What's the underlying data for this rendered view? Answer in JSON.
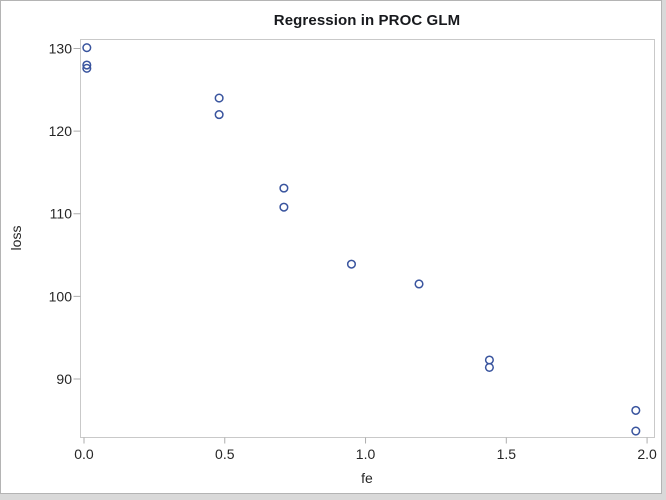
{
  "colors": {
    "marker_stroke": "#39549E",
    "plot_frame": "#c9c9c9",
    "tick_mark": "#adadad",
    "tick_text": "#262626",
    "graph_border": "#b4b4b4",
    "graph_background": "#ffffff",
    "page_background": "#d9d9d9"
  },
  "chart_data": {
    "type": "scatter",
    "title": "Regression in PROC GLM",
    "xlabel": "fe",
    "ylabel": "loss",
    "grid": false,
    "legend": "none",
    "marker": "open-circle",
    "xlim": [
      -0.0142,
      2.0246
    ],
    "ylim": [
      82.98,
      131.15
    ],
    "x_tick_values": [
      0.0,
      0.5,
      1.0,
      1.5,
      2.0
    ],
    "x_tick_labels": [
      "0.0",
      "0.5",
      "1.0",
      "1.5",
      "2.0"
    ],
    "y_tick_values": [
      90,
      100,
      110,
      120,
      130
    ],
    "y_tick_labels": [
      "90",
      "100",
      "110",
      "120",
      "130"
    ],
    "points": [
      {
        "x": 0.01,
        "y": 130.1
      },
      {
        "x": 0.01,
        "y": 128.0
      },
      {
        "x": 0.01,
        "y": 127.6
      },
      {
        "x": 0.48,
        "y": 124.0
      },
      {
        "x": 0.48,
        "y": 122.0
      },
      {
        "x": 0.71,
        "y": 113.1
      },
      {
        "x": 0.71,
        "y": 110.8
      },
      {
        "x": 0.95,
        "y": 103.9
      },
      {
        "x": 1.19,
        "y": 101.5
      },
      {
        "x": 1.44,
        "y": 92.3
      },
      {
        "x": 1.44,
        "y": 91.4
      },
      {
        "x": 1.96,
        "y": 86.2
      },
      {
        "x": 1.96,
        "y": 83.7
      }
    ]
  }
}
